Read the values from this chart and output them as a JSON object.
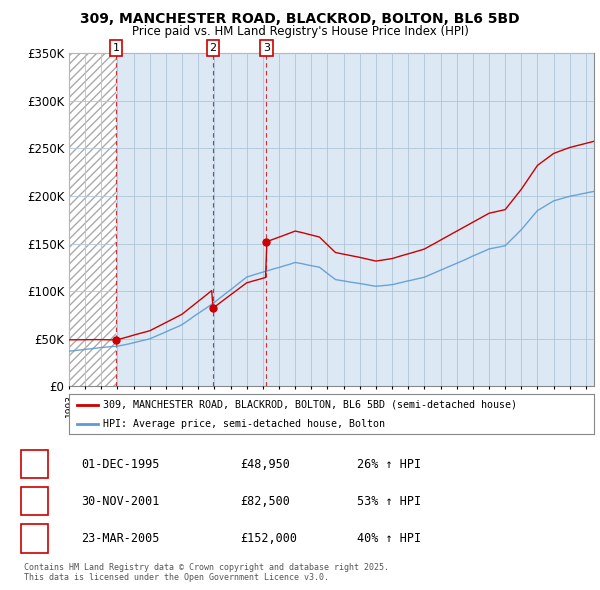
{
  "title": "309, MANCHESTER ROAD, BLACKROD, BOLTON, BL6 5BD",
  "subtitle": "Price paid vs. HM Land Registry's House Price Index (HPI)",
  "transactions": [
    {
      "num": 1,
      "date": "01-DEC-1995",
      "year": 1995.92,
      "price": 48950,
      "pct": "26%",
      "dir": "↑"
    },
    {
      "num": 2,
      "date": "30-NOV-2001",
      "year": 2001.92,
      "price": 82500,
      "pct": "53%",
      "dir": "↑"
    },
    {
      "num": 3,
      "date": "23-MAR-2005",
      "year": 2005.21,
      "price": 152000,
      "pct": "40%",
      "dir": "↑"
    }
  ],
  "legend_property": "309, MANCHESTER ROAD, BLACKROD, BOLTON, BL6 5BD (semi-detached house)",
  "legend_hpi": "HPI: Average price, semi-detached house, Bolton",
  "footer": "Contains HM Land Registry data © Crown copyright and database right 2025.\nThis data is licensed under the Open Government Licence v3.0.",
  "property_color": "#cc0000",
  "hpi_color": "#5b9bd5",
  "chart_bg": "#dce9f5",
  "hatch_bg": "#ffffff",
  "ylim": [
    0,
    350000
  ],
  "xlim_start": 1993.0,
  "xlim_end": 2025.5,
  "hatch_end": 1995.92,
  "yticks": [
    0,
    50000,
    100000,
    150000,
    200000,
    250000,
    300000,
    350000
  ],
  "ytick_labels": [
    "£0",
    "£50K",
    "£100K",
    "£150K",
    "£200K",
    "£250K",
    "£300K",
    "£350K"
  ]
}
